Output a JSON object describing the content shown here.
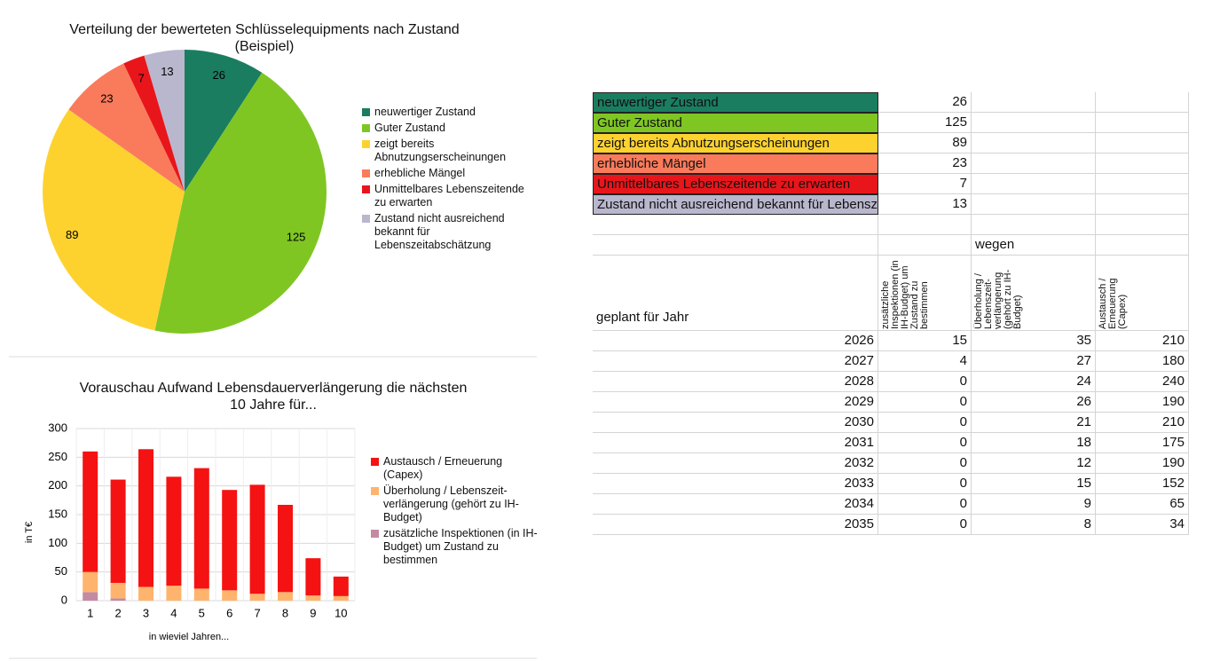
{
  "chart_data": [
    {
      "type": "pie",
      "title": "Verteilung der bewerteten Schlüsselequipments nach Zustand (Beispiel)",
      "categories": [
        "neuwertiger Zustand",
        "Guter Zustand",
        "zeigt bereits Abnutzungserscheinungen",
        "erhebliche Mängel",
        "Unmittelbares Lebenszeitende zu erwarten",
        "Zustand nicht ausreichend bekannt für Lebenszeitabschätzung"
      ],
      "values": [
        26,
        125,
        89,
        23,
        7,
        13
      ],
      "colors": [
        "#1b7d60",
        "#7fc623",
        "#fdd22f",
        "#fa7b5c",
        "#e8161b",
        "#b9b7cd"
      ],
      "legend": "right"
    },
    {
      "type": "stacked-bar",
      "title": "Vorauschau Aufwand Lebensdauerverlängerung die nächsten 10 Jahre für...",
      "x_label": "in wieviel Jahren...",
      "y_label": "in T€",
      "categories": [
        "1",
        "2",
        "3",
        "4",
        "5",
        "6",
        "7",
        "8",
        "9",
        "10"
      ],
      "series": [
        {
          "name": "zusätzliche Inspektionen (in IH-Budget) um Zustand zu bestimmen",
          "color": "#c48aa2",
          "values": [
            15,
            4,
            0,
            0,
            0,
            0,
            0,
            0,
            0,
            0
          ]
        },
        {
          "name": "Überholung / Lebenszeit-verlängerung (gehört zu IH-Budget)",
          "color": "#ffb46e",
          "values": [
            35,
            27,
            24,
            26,
            21,
            18,
            12,
            15,
            9,
            8
          ]
        },
        {
          "name": "Austausch / Erneuerung (Capex)",
          "color": "#f51212",
          "values": [
            210,
            180,
            240,
            190,
            210,
            175,
            190,
            152,
            65,
            34
          ]
        }
      ],
      "ylim": [
        0,
        300
      ],
      "yticks": [
        0,
        50,
        100,
        150,
        200,
        250,
        300
      ],
      "grid": true,
      "legend": "right"
    }
  ],
  "table": {
    "wegen": "wegen",
    "planned_label": "geplant für Jahr",
    "years": [
      2026,
      2027,
      2028,
      2029,
      2030,
      2031,
      2032,
      2033,
      2034,
      2035
    ]
  }
}
